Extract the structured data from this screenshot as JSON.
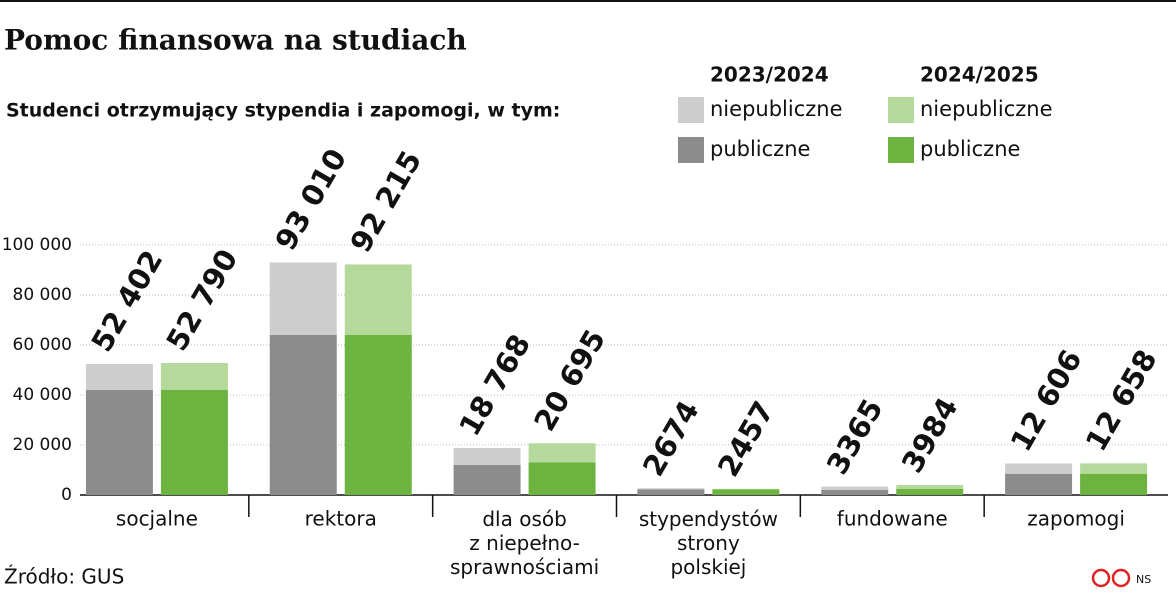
{
  "chart_data": {
    "type": "bar",
    "title": "Pomoc finansowa na studiach",
    "subtitle": "Studenci otrzymujący stypendia i zapomogi, w tym:",
    "source": "Źródło: GUS",
    "credit": "NS",
    "categories": [
      "socjalne",
      "rektora",
      "dla osób\nz niepełno-\nsprawnościami",
      "stypendystów\nstrony\npolskiej",
      "fundowane",
      "zapomogi"
    ],
    "ylim": [
      0,
      100000
    ],
    "yticks": [
      {
        "value": 0,
        "label": "0"
      },
      {
        "value": 20000,
        "label": "20 000"
      },
      {
        "value": 40000,
        "label": "40 000"
      },
      {
        "value": 60000,
        "label": "60 000"
      },
      {
        "value": 80000,
        "label": "80 000"
      },
      {
        "value": 100000,
        "label": "100 000"
      }
    ],
    "groups": [
      {
        "label": "2023/2024",
        "series": [
          {
            "name": "publiczne",
            "color": "#8c8c8c",
            "values": [
              42000,
              64000,
              12000,
              2300,
              2000,
              8500
            ]
          },
          {
            "name": "niepubliczne",
            "color": "#cdcdcd",
            "values": [
              10402,
              29010,
              6768,
              374,
              1365,
              4106
            ]
          }
        ],
        "totals": [
          52402,
          93010,
          18768,
          2674,
          3365,
          12606
        ],
        "total_labels": [
          "52 402",
          "93 010",
          "18 768",
          "2674",
          "3365",
          "12 606"
        ]
      },
      {
        "label": "2024/2025",
        "series": [
          {
            "name": "publiczne",
            "color": "#6db33f",
            "values": [
              42000,
              64000,
              13000,
              2200,
              2500,
              8500
            ]
          },
          {
            "name": "niepubliczne",
            "color": "#b5d99a",
            "values": [
              10790,
              28215,
              7695,
              257,
              1484,
              4158
            ]
          }
        ],
        "totals": [
          52790,
          92215,
          20695,
          2457,
          3984,
          12658
        ],
        "total_labels": [
          "52 790",
          "92 215",
          "20 695",
          "2457",
          "3984",
          "12 658"
        ]
      }
    ]
  }
}
